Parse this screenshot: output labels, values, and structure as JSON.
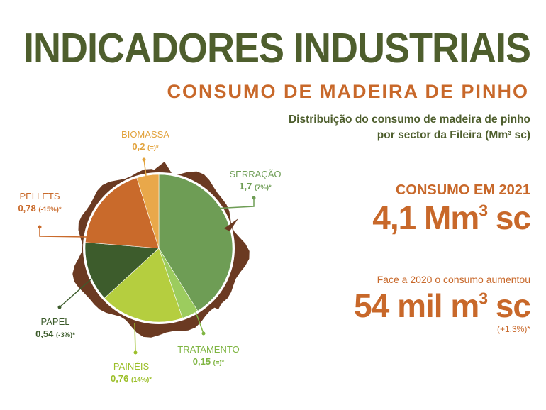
{
  "header": {
    "title": "INDICADORES INDUSTRIAIS",
    "subtitle": "CONSUMO DE MADEIRA DE PINHO",
    "description_line1": "Distribuição do consumo de madeira de pinho",
    "description_line2": "por sector da Fileira (Mm³ sc)"
  },
  "stats": {
    "consumo_label": "CONSUMO EM 2021",
    "consumo_value": "4,1 Mm",
    "consumo_sup": "3",
    "consumo_unit": " sc",
    "face_label": "Face a 2020 o consumo aumentou",
    "face_value": "54 mil m",
    "face_sup": "3",
    "face_unit": " sc",
    "face_pct": "(+1,3%)*"
  },
  "chart_data": {
    "type": "pie",
    "title": "",
    "slices": [
      {
        "name": "SERRAÇÃO",
        "value": 1.7,
        "value_label": "1,7",
        "change": "(7%)*",
        "color": "#6e9d55"
      },
      {
        "name": "TRATAMENTO",
        "value": 0.15,
        "value_label": "0,15",
        "change": "(=)*",
        "color": "#9ccc5e"
      },
      {
        "name": "PAINÉIS",
        "value": 0.76,
        "value_label": "0,76",
        "change": "(14%)*",
        "color": "#b5ce3f"
      },
      {
        "name": "PAPEL",
        "value": 0.54,
        "value_label": "0,54",
        "change": "(-3%)*",
        "color": "#3d5c2c"
      },
      {
        "name": "PELLETS",
        "value": 0.78,
        "value_label": "0,78",
        "change": "(-15%)*",
        "color": "#c96a2b"
      },
      {
        "name": "BIOMASSA",
        "value": 0.2,
        "value_label": "0,2",
        "change": "(=)*",
        "color": "#e9a84a"
      }
    ],
    "label_colors": {
      "SERRAÇÃO": "#6e9d55",
      "TRATAMENTO": "#7fb542",
      "PAINÉIS": "#9cbf2a",
      "PAPEL": "#3d5c2c",
      "PELLETS": "#c96a2b",
      "BIOMASSA": "#e2a33d"
    },
    "bark_color": "#6b3a22",
    "legend": "none"
  }
}
